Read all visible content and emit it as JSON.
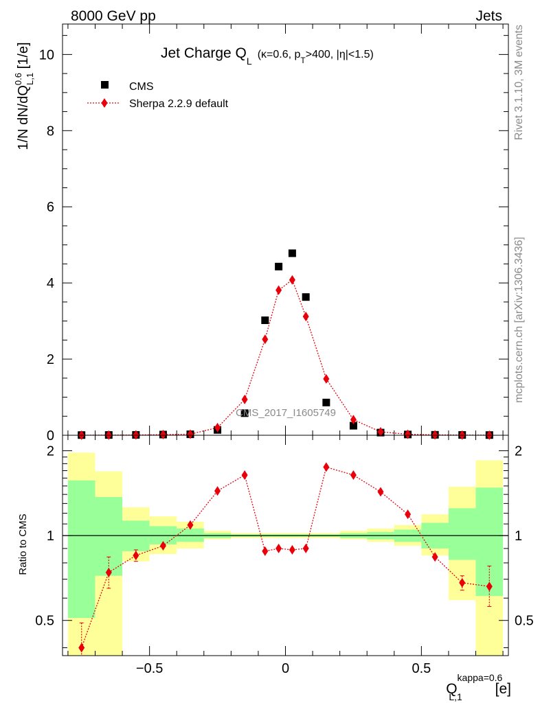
{
  "header": {
    "left": "8000 GeV pp",
    "right": "Jets"
  },
  "side_labels": {
    "rivet": "Rivet 3.1.10,  3M events",
    "mcplots": "mcplots.cern.ch [arXiv:1306.3436]"
  },
  "title": {
    "main": "Jet Charge Q",
    "main_sub": "L",
    "cond_a": "(κ=0.6, p",
    "cond_sub": "T",
    "cond_b": ">400, |η|<1.5)"
  },
  "watermark": "CMS_2017_I1605749",
  "axes": {
    "ylabel_main": {
      "pre": "1/N dN/dQ",
      "sup": "0.6",
      "sub": "L,1",
      "post": " [1/e]"
    },
    "ylabel_ratio": "Ratio to CMS",
    "xlabel": {
      "pre": "Q",
      "sup": "kappa=0.6",
      "sub": "L,1",
      "post": " [e]"
    }
  },
  "colors": {
    "data": "#000000",
    "mc": "#e8000b",
    "band_inner": "#99ff99",
    "band_outer": "#ffff99"
  },
  "chart_data": [
    {
      "type": "scatter",
      "panel": "main",
      "xlim": [
        -0.82,
        0.82
      ],
      "ylim": [
        0,
        10.8
      ],
      "x_ticks": [
        -0.5,
        0,
        0.5
      ],
      "x_tick_labels": [
        "−0.5",
        "0",
        "0.5"
      ],
      "y_ticks": [
        0,
        2,
        4,
        6,
        8,
        10
      ],
      "y_tick_labels": [
        "0",
        "2",
        "4",
        "6",
        "8",
        "10"
      ],
      "legend_position": "top-left",
      "series": [
        {
          "name": "CMS",
          "marker": "square",
          "x": [
            -0.75,
            -0.65,
            -0.55,
            -0.45,
            -0.35,
            -0.25,
            -0.15,
            -0.075,
            -0.025,
            0.025,
            0.075,
            0.15,
            0.25,
            0.35,
            0.45,
            0.55,
            0.65,
            0.75
          ],
          "y": [
            0.005,
            0.007,
            0.01,
            0.018,
            0.025,
            0.14,
            0.58,
            3.02,
            4.43,
            4.78,
            3.63,
            0.86,
            0.25,
            0.07,
            0.02,
            0.012,
            0.008,
            0.005
          ]
        },
        {
          "name": "Sherpa 2.2.9 default",
          "marker": "diamond",
          "line": "dotted",
          "x": [
            -0.75,
            -0.65,
            -0.55,
            -0.45,
            -0.35,
            -0.25,
            -0.15,
            -0.075,
            -0.025,
            0.025,
            0.075,
            0.15,
            0.25,
            0.35,
            0.45,
            0.55,
            0.65,
            0.75
          ],
          "y": [
            0.002,
            0.005,
            0.008,
            0.017,
            0.028,
            0.2,
            0.94,
            2.52,
            3.81,
            4.08,
            3.12,
            1.48,
            0.41,
            0.09,
            0.025,
            0.01,
            0.005,
            0.003
          ]
        }
      ]
    },
    {
      "type": "scatter",
      "panel": "ratio",
      "ylabel": "Ratio to CMS",
      "xlim": [
        -0.82,
        0.82
      ],
      "ylim": [
        0.375,
        2.27
      ],
      "y_ticks": [
        0.5,
        1,
        2
      ],
      "y_tick_labels": [
        "0.5",
        "1",
        "2"
      ],
      "bins": [
        -0.8,
        -0.7,
        -0.6,
        -0.5,
        -0.4,
        -0.3,
        -0.2,
        -0.1,
        -0.05,
        0,
        0.05,
        0.1,
        0.2,
        0.3,
        0.4,
        0.5,
        0.6,
        0.7,
        0.8
      ],
      "band_inner": {
        "lo": [
          0.51,
          0.72,
          0.88,
          0.93,
          0.95,
          0.98,
          0.99,
          0.99,
          0.99,
          0.99,
          0.99,
          0.99,
          0.98,
          0.97,
          0.95,
          0.9,
          0.82,
          0.61
        ],
        "hi": [
          1.57,
          1.37,
          1.13,
          1.08,
          1.06,
          1.02,
          1.01,
          1.01,
          1.01,
          1.01,
          1.01,
          1.01,
          1.02,
          1.03,
          1.05,
          1.11,
          1.25,
          1.48
        ]
      },
      "band_outer": {
        "lo": [
          0.34,
          0.34,
          0.81,
          0.86,
          0.9,
          0.97,
          0.98,
          0.98,
          0.98,
          0.98,
          0.98,
          0.98,
          0.97,
          0.95,
          0.92,
          0.85,
          0.59,
          0.34
        ],
        "hi": [
          1.97,
          1.69,
          1.26,
          1.17,
          1.12,
          1.04,
          1.02,
          1.02,
          1.02,
          1.02,
          1.02,
          1.02,
          1.04,
          1.06,
          1.09,
          1.19,
          1.49,
          1.85
        ]
      },
      "series": [
        {
          "name": "Sherpa 2.2.9 default",
          "marker": "diamond",
          "line": "dotted",
          "x": [
            -0.75,
            -0.65,
            -0.55,
            -0.45,
            -0.35,
            -0.25,
            -0.15,
            -0.075,
            -0.025,
            0.025,
            0.075,
            0.15,
            0.25,
            0.35,
            0.45,
            0.55,
            0.65,
            0.75
          ],
          "y": [
            0.4,
            0.74,
            0.85,
            0.92,
            1.09,
            1.44,
            1.64,
            0.88,
            0.9,
            0.89,
            0.9,
            1.75,
            1.64,
            1.43,
            1.19,
            0.84,
            0.68,
            0.66
          ],
          "err_lo": [
            0.06,
            0.09,
            0.04,
            0,
            0,
            0,
            0,
            0,
            0,
            0,
            0,
            0,
            0,
            0,
            0,
            0,
            0.04,
            0.1
          ],
          "err_hi": [
            0.09,
            0.1,
            0.04,
            0,
            0,
            0,
            0,
            0,
            0,
            0,
            0,
            0,
            0,
            0,
            0,
            0,
            0.04,
            0.12
          ]
        }
      ]
    }
  ]
}
